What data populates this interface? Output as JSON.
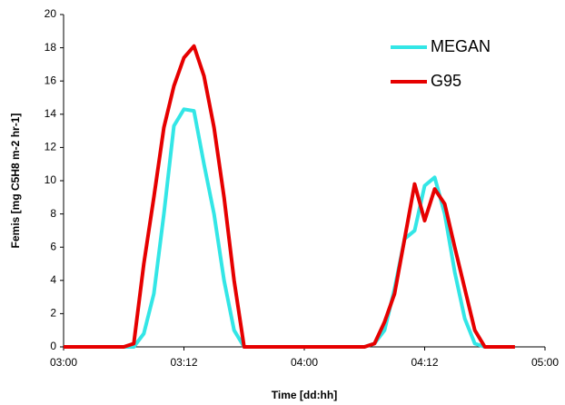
{
  "chart_data": {
    "type": "line",
    "xlabel": "Time [dd:hh]",
    "ylabel": "Femis [mg C5H8 m-2 hr-1]",
    "x": [
      0,
      1,
      2,
      3,
      4,
      5,
      6,
      7,
      8,
      9,
      10,
      11,
      12,
      13,
      14,
      15,
      16,
      17,
      18,
      19,
      20,
      21,
      22,
      23,
      24,
      25,
      26,
      27,
      28,
      29,
      30,
      31,
      32,
      33,
      34,
      35,
      36,
      37,
      38,
      39,
      40,
      41,
      42,
      43,
      44,
      45
    ],
    "series": [
      {
        "name": "MEGAN",
        "color": "#33e6e6",
        "values": [
          0,
          0,
          0,
          0,
          0,
          0,
          0,
          0,
          0.8,
          3.2,
          8,
          13.3,
          14.3,
          14.2,
          11,
          8,
          4,
          1,
          0,
          0,
          0,
          0,
          0,
          0,
          0,
          0,
          0,
          0,
          0,
          0,
          0,
          0.2,
          1,
          3.5,
          6.5,
          7,
          9.7,
          10.2,
          8,
          4.5,
          1.7,
          0.2,
          0,
          null,
          null,
          null
        ]
      },
      {
        "name": "G95",
        "color": "#e60000",
        "values": [
          0,
          0,
          0,
          0,
          0,
          0,
          0,
          0.2,
          5,
          9,
          13.2,
          15.7,
          17.4,
          18.1,
          16.3,
          13.2,
          9,
          4,
          0,
          0,
          0,
          0,
          0,
          0,
          0,
          0,
          0,
          0,
          0,
          0,
          0,
          0.2,
          1.5,
          3.2,
          6.5,
          9.8,
          7.6,
          9.5,
          8.6,
          6,
          3.5,
          1,
          0,
          0,
          0,
          0
        ]
      }
    ],
    "xlim": [
      0,
      48
    ],
    "xticks": [
      {
        "value": 0,
        "label": "03:00"
      },
      {
        "value": 12,
        "label": "03:12"
      },
      {
        "value": 24,
        "label": "04:00"
      },
      {
        "value": 36,
        "label": "04:12"
      },
      {
        "value": 48,
        "label": "05:00"
      }
    ],
    "ylim": [
      0,
      20
    ],
    "yticks": [
      0,
      2,
      4,
      6,
      8,
      10,
      12,
      14,
      16,
      18,
      20
    ],
    "legend": "upper right"
  }
}
